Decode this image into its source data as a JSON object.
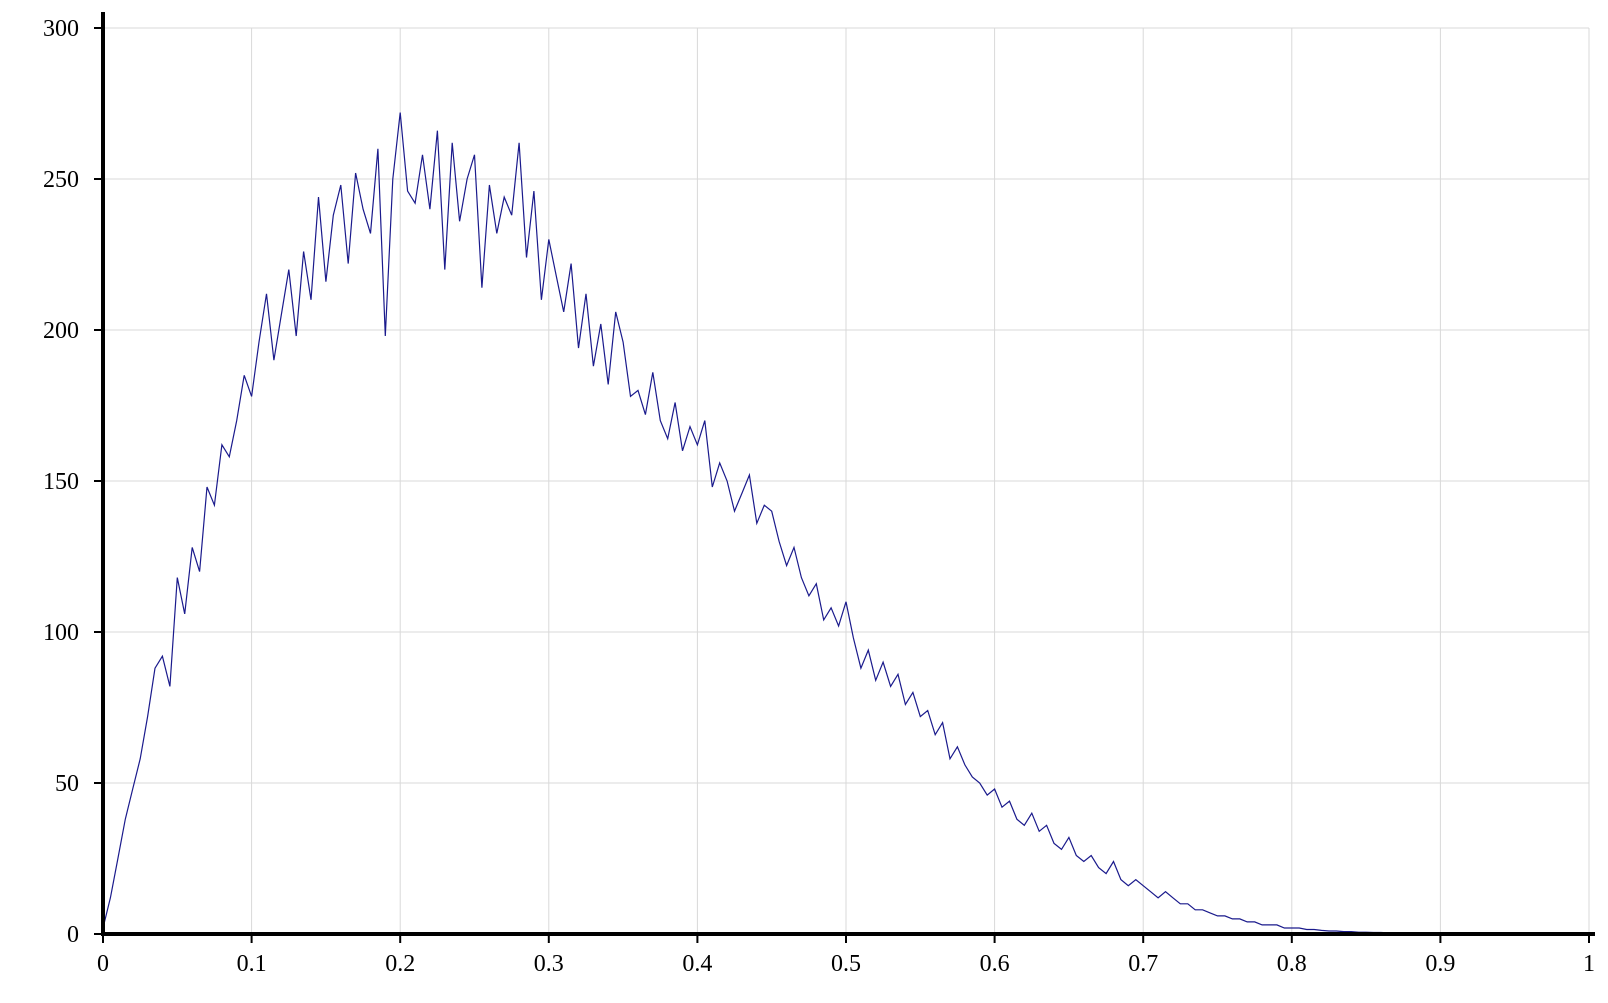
{
  "chart_data": {
    "type": "line",
    "title": "",
    "xlabel": "",
    "ylabel": "",
    "xlim": [
      0,
      1
    ],
    "ylim": [
      0,
      300
    ],
    "x_ticks": [
      "0",
      "0.1",
      "0.2",
      "0.3",
      "0.4",
      "0.5",
      "0.6",
      "0.7",
      "0.8",
      "0.9",
      "1"
    ],
    "y_ticks": [
      "0",
      "50",
      "100",
      "150",
      "200",
      "250",
      "300"
    ],
    "grid": true,
    "legend": "none",
    "series": [
      {
        "color": "#1a1a8c",
        "x": [
          0,
          0.005,
          0.01,
          0.015,
          0.02,
          0.025,
          0.03,
          0.035,
          0.04,
          0.045,
          0.05,
          0.055,
          0.06,
          0.065,
          0.07,
          0.075,
          0.08,
          0.085,
          0.09,
          0.095,
          0.1,
          0.105,
          0.11,
          0.115,
          0.12,
          0.125,
          0.13,
          0.135,
          0.14,
          0.145,
          0.15,
          0.155,
          0.16,
          0.165,
          0.17,
          0.175,
          0.18,
          0.185,
          0.19,
          0.195,
          0.2,
          0.205,
          0.21,
          0.215,
          0.22,
          0.225,
          0.23,
          0.235,
          0.24,
          0.245,
          0.25,
          0.255,
          0.26,
          0.265,
          0.27,
          0.275,
          0.28,
          0.285,
          0.29,
          0.295,
          0.3,
          0.305,
          0.31,
          0.315,
          0.32,
          0.325,
          0.33,
          0.335,
          0.34,
          0.345,
          0.35,
          0.355,
          0.36,
          0.365,
          0.37,
          0.375,
          0.38,
          0.385,
          0.39,
          0.395,
          0.4,
          0.405,
          0.41,
          0.415,
          0.42,
          0.425,
          0.43,
          0.435,
          0.44,
          0.445,
          0.45,
          0.455,
          0.46,
          0.465,
          0.47,
          0.475,
          0.48,
          0.485,
          0.49,
          0.495,
          0.5,
          0.505,
          0.51,
          0.515,
          0.52,
          0.525,
          0.53,
          0.535,
          0.54,
          0.545,
          0.55,
          0.555,
          0.56,
          0.565,
          0.57,
          0.575,
          0.58,
          0.585,
          0.59,
          0.595,
          0.6,
          0.605,
          0.61,
          0.615,
          0.62,
          0.625,
          0.63,
          0.635,
          0.64,
          0.645,
          0.65,
          0.655,
          0.66,
          0.665,
          0.67,
          0.675,
          0.68,
          0.685,
          0.69,
          0.695,
          0.7,
          0.705,
          0.71,
          0.715,
          0.72,
          0.725,
          0.73,
          0.735,
          0.74,
          0.745,
          0.75,
          0.755,
          0.76,
          0.765,
          0.77,
          0.775,
          0.78,
          0.785,
          0.79,
          0.795,
          0.8,
          0.805,
          0.81,
          0.815,
          0.82,
          0.825,
          0.83,
          0.835,
          0.84,
          0.845,
          0.85,
          0.855,
          0.86,
          0.865,
          0.87,
          0.875,
          0.88,
          0.885,
          0.89,
          0.895,
          0.9,
          0.905,
          0.91,
          0.915,
          0.92,
          0.925,
          0.93,
          0.935,
          0.94
        ],
        "y": [
          2,
          12,
          25,
          38,
          48,
          58,
          72,
          88,
          92,
          82,
          118,
          106,
          128,
          120,
          148,
          142,
          162,
          158,
          170,
          185,
          178,
          196,
          212,
          190,
          205,
          220,
          198,
          226,
          210,
          244,
          216,
          238,
          248,
          222,
          252,
          240,
          232,
          260,
          198,
          250,
          272,
          246,
          242,
          258,
          240,
          266,
          220,
          262,
          236,
          250,
          258,
          214,
          248,
          232,
          244,
          238,
          262,
          224,
          246,
          210,
          230,
          218,
          206,
          222,
          194,
          212,
          188,
          202,
          182,
          206,
          196,
          178,
          180,
          172,
          186,
          170,
          164,
          176,
          160,
          168,
          162,
          170,
          148,
          156,
          150,
          140,
          146,
          152,
          136,
          142,
          140,
          130,
          122,
          128,
          118,
          112,
          116,
          104,
          108,
          102,
          110,
          98,
          88,
          94,
          84,
          90,
          82,
          86,
          76,
          80,
          72,
          74,
          66,
          70,
          58,
          62,
          56,
          52,
          50,
          46,
          48,
          42,
          44,
          38,
          36,
          40,
          34,
          36,
          30,
          28,
          32,
          26,
          24,
          26,
          22,
          20,
          24,
          18,
          16,
          18,
          16,
          14,
          12,
          14,
          12,
          10,
          10,
          8,
          8,
          7,
          6,
          6,
          5,
          5,
          4,
          4,
          3,
          3,
          3,
          2,
          2,
          2,
          1.5,
          1.5,
          1.2,
          1,
          1,
          0.8,
          0.8,
          0.6,
          0.6,
          0.5,
          0.5,
          0.4,
          0.4,
          0.3,
          0.3,
          0.2,
          0.2,
          0.1,
          0.1,
          0.1,
          0.1,
          0.1,
          0.1,
          0.1,
          0.1,
          0.1,
          0.1
        ]
      }
    ]
  }
}
